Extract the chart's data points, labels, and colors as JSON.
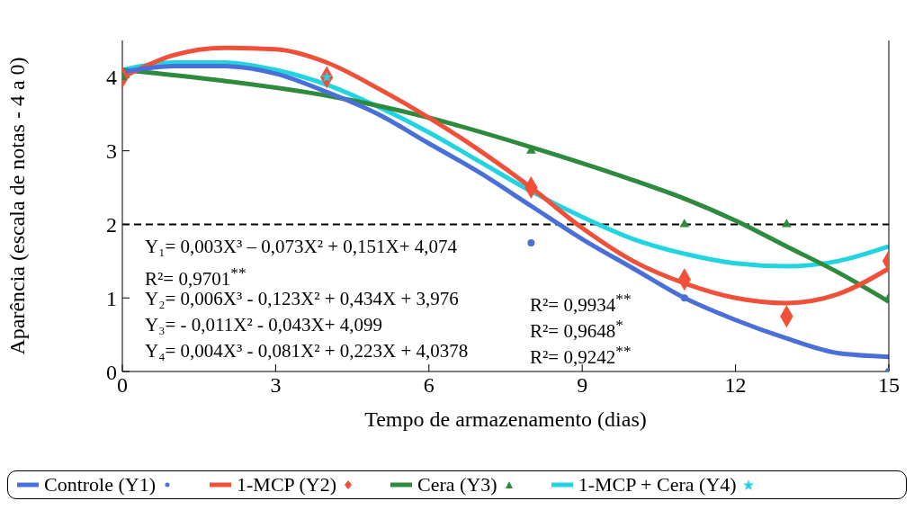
{
  "chart_data": {
    "type": "line",
    "xlabel": "Tempo de armazenamento (dias)",
    "ylabel": "Aparência (escala de notas - 4 a 0)",
    "xlim": [
      0,
      15
    ],
    "xticks": [
      0,
      3,
      6,
      9,
      12,
      15
    ],
    "ylim": [
      0,
      4.5
    ],
    "yticks": [
      0,
      1,
      2,
      3,
      4
    ],
    "grid": false,
    "legend": "bottom",
    "ref_lines": [
      {
        "axis": "y",
        "value": 2,
        "color": "#000000",
        "line_style": "dashed"
      }
    ],
    "annotations": [
      "Y₁= 0,003X³ – 0,073X² + 0,151X+ 4,074",
      "R²= 0,9701$^{**}$",
      "Y₂= 0,006X³ - 0,123X² + 0,434X + 3,976",
      "R²= 0,9934$^{**}$",
      "Y₃= - 0,011X² - 0,043X+ 4,099",
      "R²= 0,9648$^{*}$",
      "Y₄= 0,004X³ - 0,081X² + 0,223X + 4,0378",
      "R²= 0,9242$^{**}$"
    ],
    "series": [
      {
        "name": "Controle (Y1)",
        "color": "#4a6fd8",
        "marker": "none",
        "x": [
          0,
          1,
          2,
          3,
          4,
          5,
          6,
          7,
          8,
          9,
          10,
          11,
          12,
          13,
          14,
          15
        ],
        "values": [
          4.07,
          4.15,
          4.15,
          4.05,
          3.8,
          3.5,
          3.1,
          2.7,
          2.25,
          1.8,
          1.4,
          1.0,
          0.7,
          0.45,
          0.25,
          0.2
        ]
      },
      {
        "type": "scatter",
        "color": "#4a6fd8",
        "marker": "circle",
        "x": [
          8,
          11,
          15
        ],
        "values": [
          1.75,
          1.0,
          0
        ]
      },
      {
        "name": "1-MCP (Y2)",
        "color": "#f0503a",
        "marker": "none",
        "x": [
          0,
          1,
          2,
          3,
          4,
          5,
          6,
          7,
          8,
          9,
          10,
          11,
          12,
          13,
          14,
          15
        ],
        "values": [
          4.0,
          4.3,
          4.4,
          4.38,
          4.2,
          3.85,
          3.45,
          3.0,
          2.5,
          1.95,
          1.5,
          1.2,
          1.0,
          0.93,
          1.05,
          1.4
        ]
      },
      {
        "type": "scatter",
        "color": "#f0503a",
        "marker": "diamond",
        "x": [
          0,
          4,
          8,
          11,
          13,
          15
        ],
        "values": [
          4,
          4,
          2.5,
          1.25,
          0.75,
          1.5
        ]
      },
      {
        "name": "Cera (Y3)",
        "color": "#2e8b3e",
        "marker": "none",
        "x": [
          0,
          2,
          4,
          6,
          8,
          10,
          11,
          12,
          13,
          14,
          15
        ],
        "values": [
          4.1,
          3.95,
          3.75,
          3.45,
          3.05,
          2.6,
          2.35,
          2.05,
          1.7,
          1.35,
          0.95
        ]
      },
      {
        "type": "scatter",
        "color": "#2e8b3e",
        "marker": "triangle",
        "x": [
          0,
          8,
          11,
          13,
          15
        ],
        "values": [
          4,
          3,
          2,
          2,
          1
        ]
      },
      {
        "name": "1-MCP + Cera (Y4)",
        "color": "#22d4e0",
        "marker": "none",
        "x": [
          0,
          1,
          2,
          3,
          4,
          5,
          6,
          7,
          8,
          9,
          10,
          11,
          12,
          13,
          14,
          15
        ],
        "values": [
          4.1,
          4.2,
          4.2,
          4.1,
          3.9,
          3.6,
          3.25,
          2.85,
          2.45,
          2.1,
          1.8,
          1.6,
          1.47,
          1.43,
          1.5,
          1.7
        ]
      },
      {
        "type": "scatter",
        "color": "#22d4e0",
        "marker": "star",
        "x": [
          4
        ],
        "values": [
          4
        ]
      }
    ]
  }
}
